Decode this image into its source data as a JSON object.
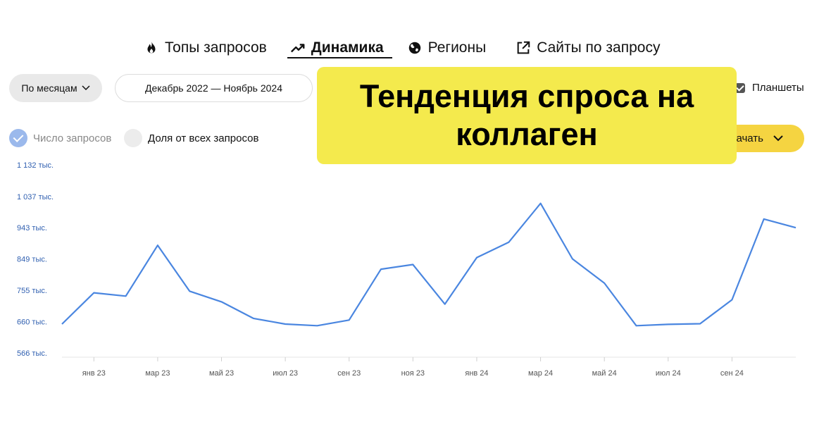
{
  "tabs": [
    {
      "label": "Топы запросов",
      "icon": "fire-icon"
    },
    {
      "label": "Динамика",
      "icon": "trend-icon",
      "active": true
    },
    {
      "label": "Регионы",
      "icon": "globe-icon"
    },
    {
      "label": "Сайты по запросу",
      "icon": "external-link-icon"
    }
  ],
  "controls": {
    "period_label": "По месяцам",
    "date_range": "Декабрь 2022 — Ноябрь 2024",
    "tablets_label": "Планшеты",
    "tablets_checked": true
  },
  "metric_toggle": {
    "count_label": "Число запросов",
    "share_label": "Доля от всех запросов",
    "selected": "count"
  },
  "download": {
    "label": "ачать"
  },
  "overlay": {
    "title": "Тенденция спроса на коллаген",
    "color": "#f4ea4d"
  },
  "colors": {
    "line": "#4a86e0",
    "accent": "#f5d441"
  },
  "chart_data": {
    "type": "line",
    "x": [
      "дек 22",
      "янв 23",
      "фев 23",
      "мар 23",
      "апр 23",
      "май 23",
      "июн 23",
      "июл 23",
      "авг 23",
      "сен 23",
      "окт 23",
      "ноя 23",
      "дек 23",
      "янв 24",
      "фев 24",
      "мар 24",
      "апр 24",
      "май 24",
      "июн 24",
      "июл 24",
      "авг 24",
      "сен 24",
      "окт 24",
      "ноя 24"
    ],
    "x_tick_labels": [
      {
        "label": "янв 23",
        "index": 1
      },
      {
        "label": "мар 23",
        "index": 3
      },
      {
        "label": "май 23",
        "index": 5
      },
      {
        "label": "июл 23",
        "index": 7
      },
      {
        "label": "сен 23",
        "index": 9
      },
      {
        "label": "ноя 23",
        "index": 11
      },
      {
        "label": "янв 24",
        "index": 13
      },
      {
        "label": "мар 24",
        "index": 15
      },
      {
        "label": "май 24",
        "index": 17
      },
      {
        "label": "июл 24",
        "index": 19
      },
      {
        "label": "сен 24",
        "index": 21
      }
    ],
    "series": [
      {
        "values": [
          653000,
          747000,
          737000,
          890000,
          752000,
          720000,
          670000,
          653000,
          648000,
          665000,
          818000,
          832000,
          713000,
          853000,
          899000,
          1016000,
          849000,
          776000,
          648000,
          652000,
          654000,
          726000,
          969000,
          943000
        ]
      }
    ],
    "yticks": [
      {
        "value": 566000,
        "label": "566 тыс."
      },
      {
        "value": 660000,
        "label": "660 тыс."
      },
      {
        "value": 755000,
        "label": "755 тыс."
      },
      {
        "value": 849000,
        "label": "849 тыс."
      },
      {
        "value": 943000,
        "label": "943 тыс."
      },
      {
        "value": 1037000,
        "label": "1 037 тыс."
      },
      {
        "value": 1132000,
        "label": "1 132 тыс."
      }
    ],
    "ylim": [
      566000,
      1132000
    ],
    "grid": false
  }
}
